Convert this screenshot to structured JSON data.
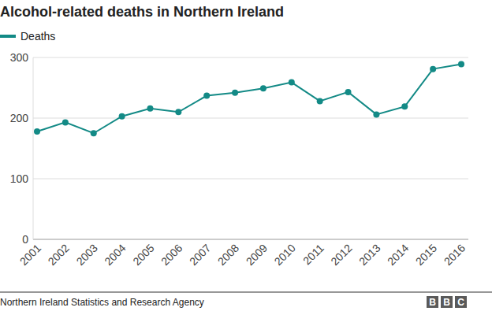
{
  "chart_data": {
    "type": "line",
    "title": "Alcohol-related deaths in Northern Ireland",
    "categories": [
      "2001",
      "2002",
      "2003",
      "2004",
      "2005",
      "2006",
      "2007",
      "2008",
      "2009",
      "2010",
      "2011",
      "2012",
      "2013",
      "2014",
      "2015",
      "2016"
    ],
    "series": [
      {
        "name": "Deaths",
        "color": "#138a86",
        "marker": "circle",
        "values": [
          178,
          193,
          175,
          203,
          216,
          210,
          237,
          242,
          249,
          259,
          228,
          243,
          206,
          219,
          281,
          289
        ]
      }
    ],
    "ylim": [
      0,
      300
    ],
    "yticks": [
      0,
      100,
      200,
      300
    ],
    "grid": true,
    "legend": "top-left",
    "source": "Northern Ireland Statistics and Research Agency",
    "logo": "BBC"
  }
}
